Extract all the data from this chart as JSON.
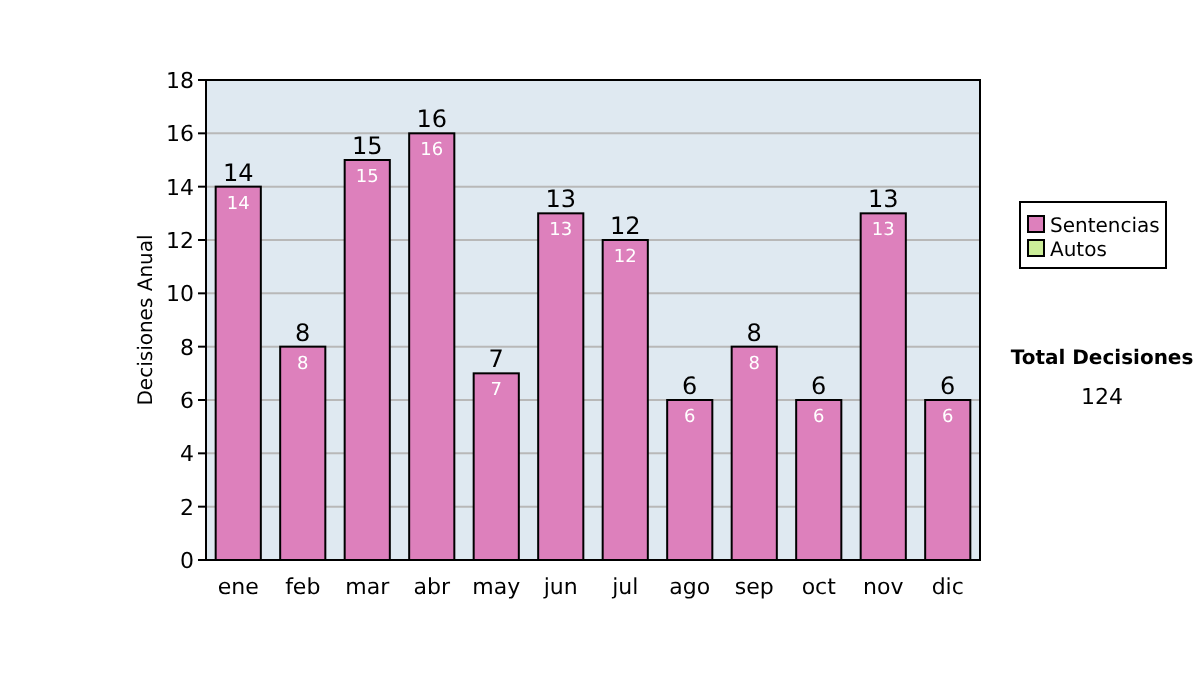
{
  "chart_data": {
    "type": "bar",
    "stacked": true,
    "ylabel": "Decisiones Anual",
    "categories": [
      "ene",
      "feb",
      "mar",
      "abr",
      "may",
      "jun",
      "jul",
      "ago",
      "sep",
      "oct",
      "nov",
      "dic"
    ],
    "series": [
      {
        "name": "Sentencias",
        "color": "#dd80bc",
        "values": [
          14,
          8,
          15,
          16,
          7,
          13,
          12,
          6,
          8,
          6,
          13,
          6
        ],
        "value_labels": [
          "14",
          "8",
          "15",
          "16",
          "7",
          "13",
          "12",
          "6",
          "8",
          "6",
          "13",
          "6"
        ]
      },
      {
        "name": "Autos",
        "color": "#ccee99",
        "values": [
          0,
          0,
          0,
          0,
          0,
          0,
          0,
          0,
          0,
          0,
          0,
          0
        ],
        "value_labels": [
          null,
          null,
          null,
          null,
          null,
          null,
          null,
          null,
          null,
          null,
          null,
          null
        ]
      }
    ],
    "totals": [
      "14",
      "8",
      "15",
      "16",
      "7",
      "13",
      "12",
      "6",
      "8",
      "6",
      "13",
      "6"
    ],
    "ylim": [
      0,
      18
    ],
    "yticks": [
      0,
      2,
      4,
      6,
      8,
      10,
      12,
      14,
      16,
      18
    ],
    "grid": "y",
    "legend": "right",
    "annotations": [
      "Total Decisiones",
      "124"
    ]
  }
}
